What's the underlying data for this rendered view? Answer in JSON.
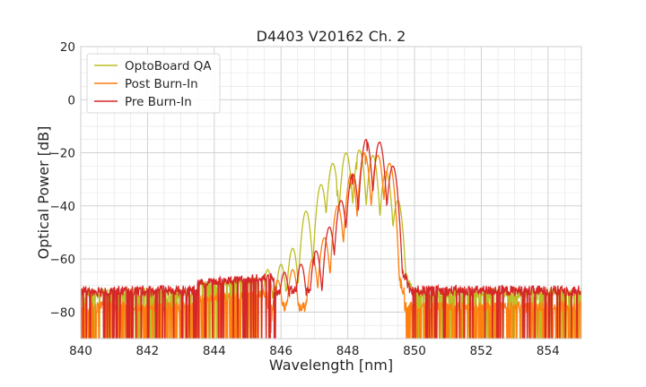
{
  "chart_data": {
    "type": "line",
    "title": "D4403 V20162 Ch. 2",
    "xlabel": "Wavelength [nm]",
    "ylabel": "Optical Power [dB]",
    "xlim": [
      840,
      855
    ],
    "ylim": [
      -90,
      20
    ],
    "xticks": [
      840,
      842,
      844,
      846,
      848,
      850,
      852,
      854
    ],
    "yticks": [
      20,
      0,
      -20,
      -40,
      -60,
      -80
    ],
    "xtick_labels": [
      "840",
      "842",
      "844",
      "846",
      "848",
      "850",
      "852",
      "854"
    ],
    "ytick_labels": [
      "20",
      "0",
      "−20",
      "−40",
      "−60",
      "−80"
    ],
    "grid": true,
    "legend": "top-left",
    "series": [
      {
        "name": "OptoBoard QA",
        "color": "#bcbd22",
        "noise_floor_db": -73,
        "noise_band_start": 848.4,
        "peaks": [
          {
            "x": 845.6,
            "y": -64
          },
          {
            "x": 846.0,
            "y": -62
          },
          {
            "x": 846.35,
            "y": -56
          },
          {
            "x": 846.75,
            "y": -42
          },
          {
            "x": 847.2,
            "y": -32
          },
          {
            "x": 847.55,
            "y": -24
          },
          {
            "x": 847.95,
            "y": -20
          },
          {
            "x": 848.35,
            "y": -19
          },
          {
            "x": 848.75,
            "y": -21
          },
          {
            "x": 849.15,
            "y": -27
          },
          {
            "x": 849.5,
            "y": -38
          }
        ],
        "cutoff_x": 849.6
      },
      {
        "name": "Post Burn-In",
        "color": "#ff7f0e",
        "noise_floor_db": -78,
        "noise_band_start": 848.4,
        "peaks": [
          {
            "x": 845.9,
            "y": -68
          },
          {
            "x": 846.35,
            "y": -64
          },
          {
            "x": 846.95,
            "y": -60
          },
          {
            "x": 847.3,
            "y": -52
          },
          {
            "x": 847.7,
            "y": -40
          },
          {
            "x": 848.1,
            "y": -28
          },
          {
            "x": 848.5,
            "y": -20
          },
          {
            "x": 848.9,
            "y": -21
          },
          {
            "x": 849.25,
            "y": -24
          }
        ],
        "cutoff_x": 849.35
      },
      {
        "name": "Pre Burn-In",
        "color": "#d62728",
        "noise_floor_db": -72,
        "noise_band_start": 849.5,
        "peaks": [
          {
            "x": 846.1,
            "y": -65
          },
          {
            "x": 846.6,
            "y": -62
          },
          {
            "x": 847.05,
            "y": -57
          },
          {
            "x": 847.45,
            "y": -48
          },
          {
            "x": 847.8,
            "y": -38
          },
          {
            "x": 848.15,
            "y": -28
          },
          {
            "x": 848.55,
            "y": -15
          },
          {
            "x": 848.95,
            "y": -16
          },
          {
            "x": 849.35,
            "y": -25
          }
        ],
        "cutoff_x": 849.55
      }
    ]
  }
}
